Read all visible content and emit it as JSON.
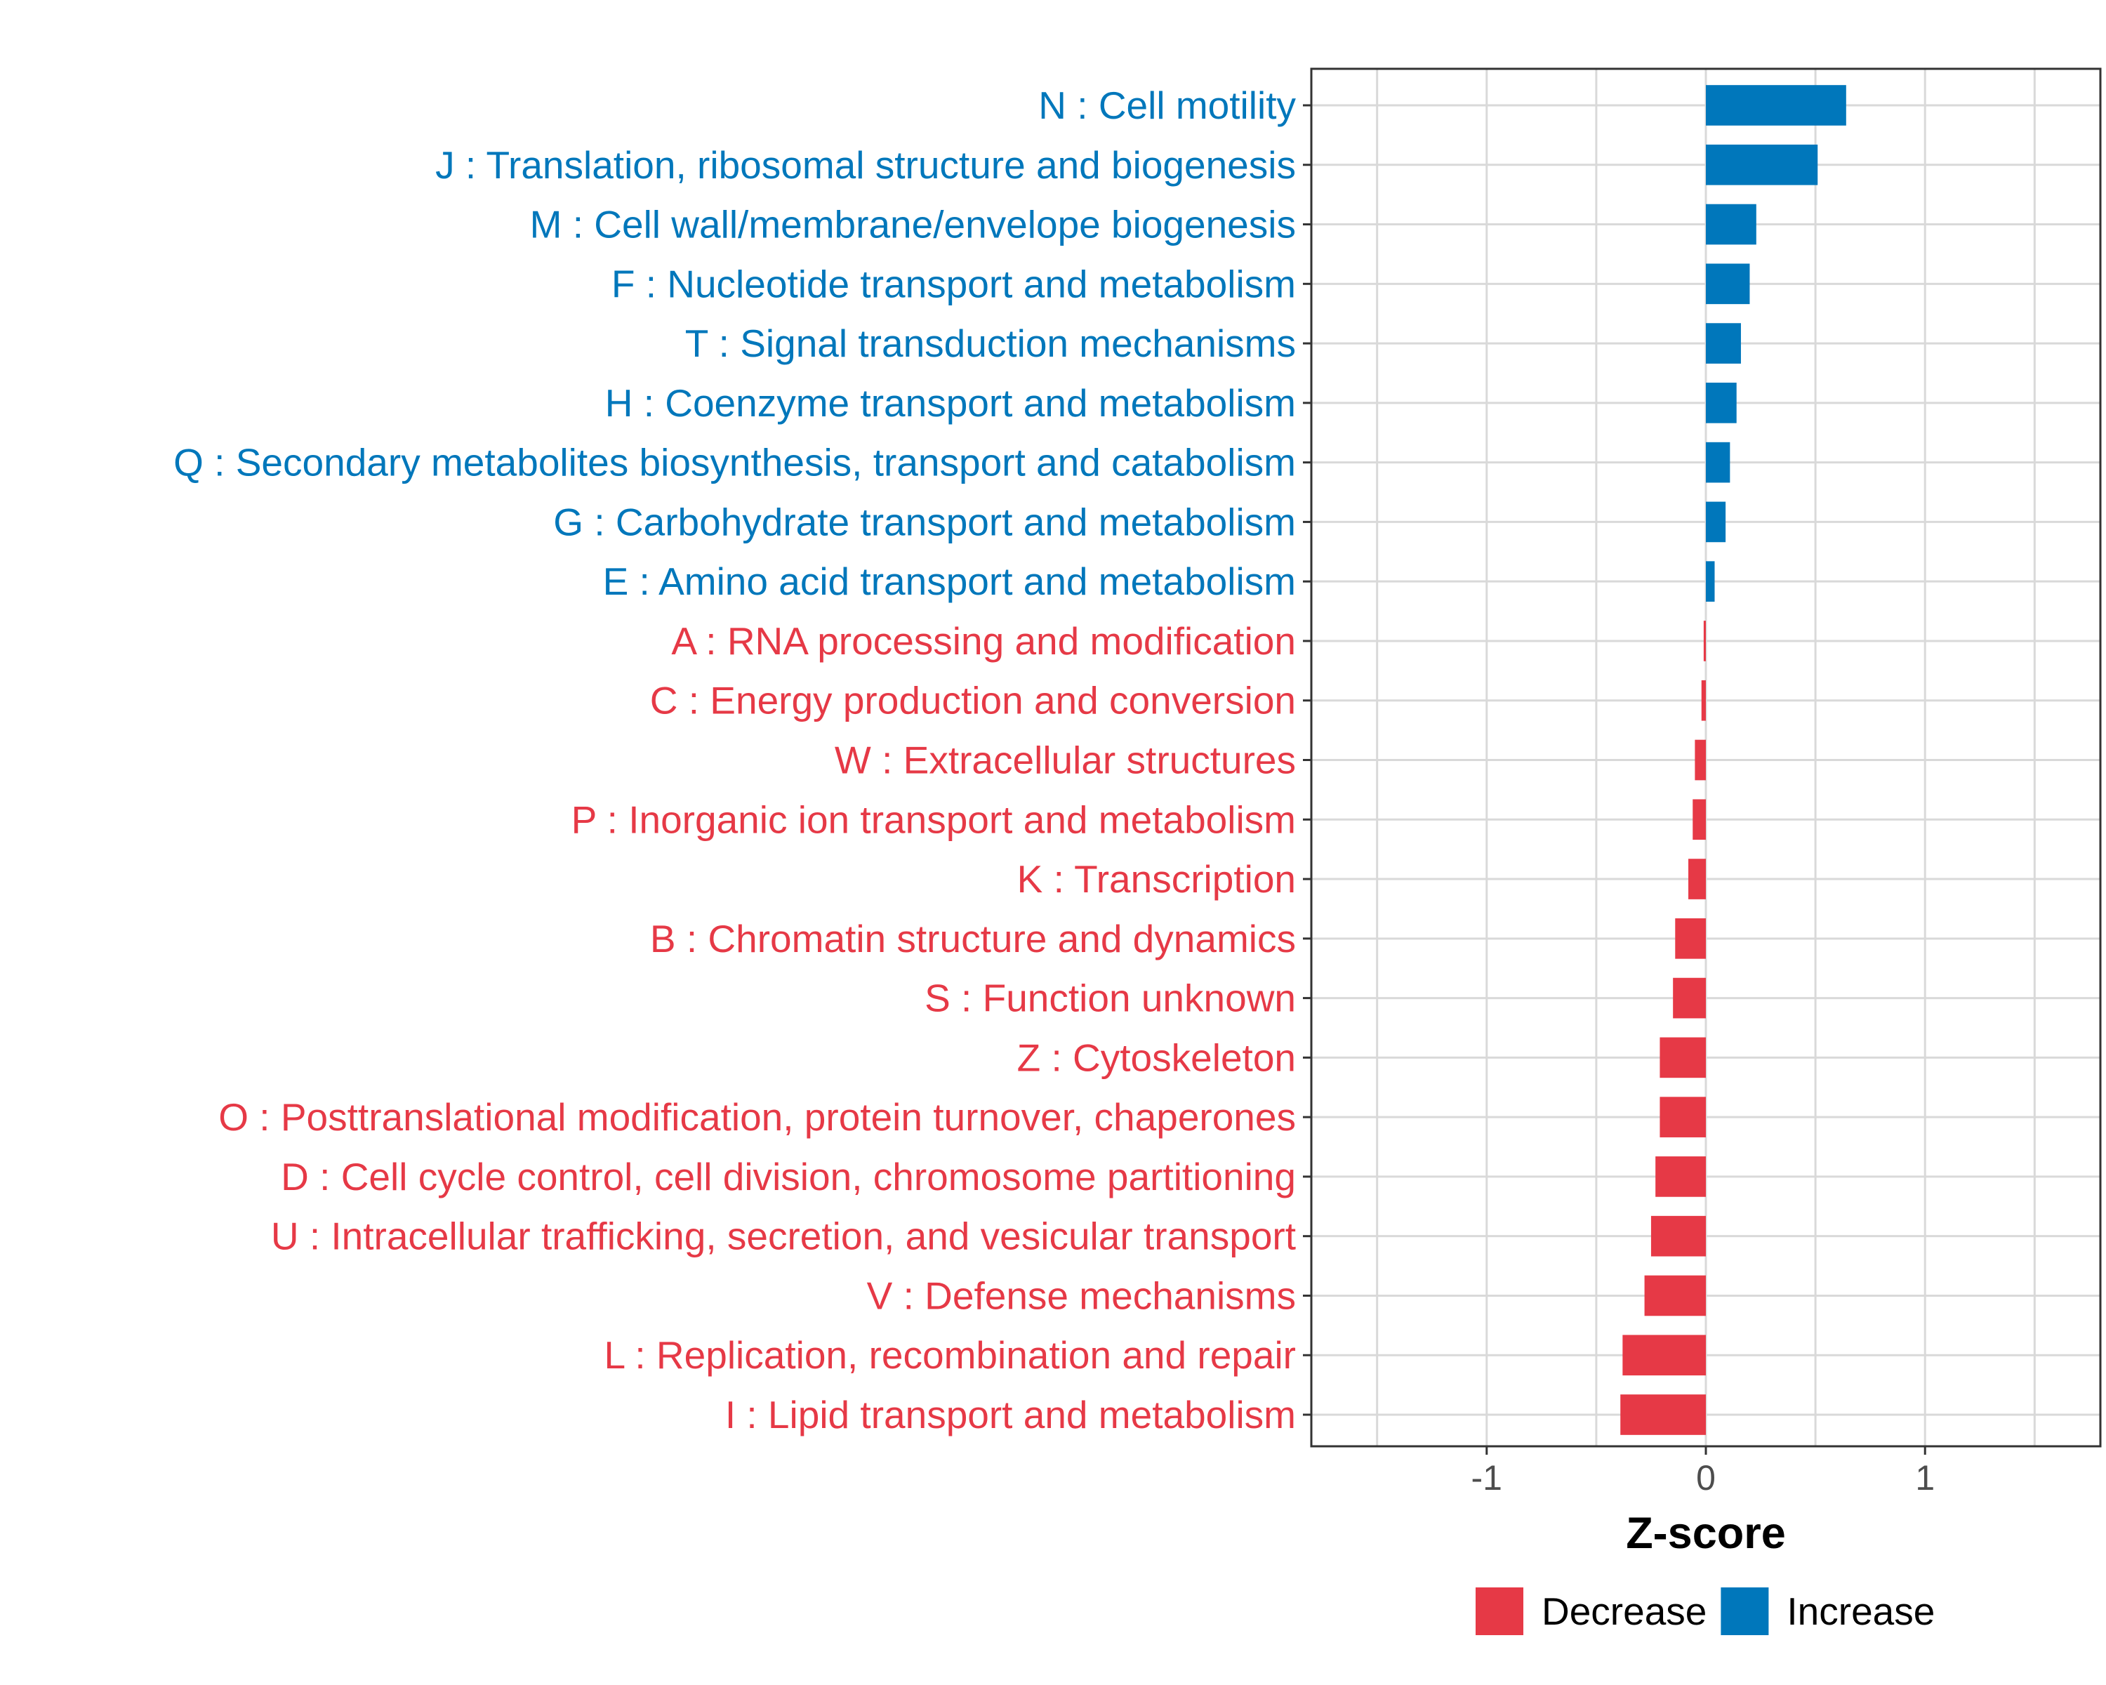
{
  "chart_data": {
    "type": "bar",
    "orientation": "horizontal",
    "xlabel": "Z-score",
    "xlim": [
      -1.8,
      1.8
    ],
    "xticks": [
      -1,
      0,
      1
    ],
    "xtick_labels": [
      "-1",
      "0",
      "1"
    ],
    "grid": true,
    "categories": [
      "N : Cell motility",
      "J : Translation, ribosomal structure and biogenesis",
      "M : Cell wall/membrane/envelope biogenesis",
      "F : Nucleotide transport and metabolism",
      "T : Signal transduction mechanisms",
      "H : Coenzyme transport and metabolism",
      "Q : Secondary metabolites biosynthesis, transport and catabolism",
      "G : Carbohydrate transport and metabolism",
      "E : Amino acid transport and metabolism",
      "A : RNA processing and modification",
      "C : Energy production and conversion",
      "W : Extracellular structures",
      "P : Inorganic ion transport and metabolism",
      "K : Transcription",
      "B : Chromatin structure and dynamics",
      "S : Function unknown",
      "Z : Cytoskeleton",
      "O : Posttranslational modification, protein turnover, chaperones",
      "D : Cell cycle control, cell division, chromosome partitioning",
      "U : Intracellular trafficking, secretion, and vesicular transport",
      "V : Defense mechanisms",
      "L : Replication, recombination and repair",
      "I : Lipid transport and metabolism"
    ],
    "values": [
      0.64,
      0.51,
      0.23,
      0.2,
      0.16,
      0.14,
      0.11,
      0.09,
      0.04,
      -0.01,
      -0.02,
      -0.05,
      -0.06,
      -0.08,
      -0.14,
      -0.15,
      -0.21,
      -0.21,
      -0.23,
      -0.25,
      -0.28,
      -0.38,
      -0.39
    ],
    "groups": [
      "Increase",
      "Increase",
      "Increase",
      "Increase",
      "Increase",
      "Increase",
      "Increase",
      "Increase",
      "Increase",
      "Decrease",
      "Decrease",
      "Decrease",
      "Decrease",
      "Decrease",
      "Decrease",
      "Decrease",
      "Decrease",
      "Decrease",
      "Decrease",
      "Decrease",
      "Decrease",
      "Decrease",
      "Decrease"
    ],
    "legend": {
      "position": "bottom",
      "entries": [
        {
          "label": "Decrease",
          "color": "#e63946"
        },
        {
          "label": "Increase",
          "color": "#0077bb"
        }
      ]
    },
    "colors": {
      "Decrease": "#e63946",
      "Increase": "#0077bb"
    }
  }
}
